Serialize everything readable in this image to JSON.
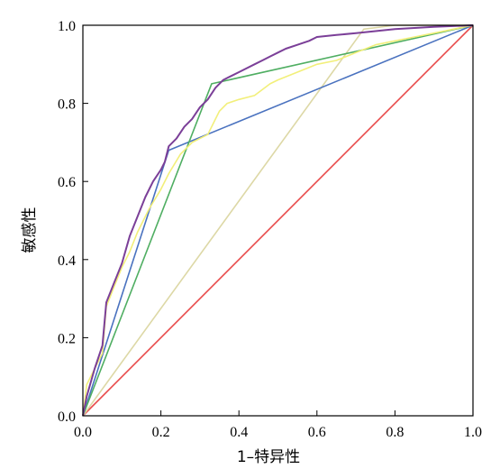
{
  "chart_data": {
    "type": "line",
    "title": "",
    "xlabel": "1–特异性",
    "ylabel": "敏感性",
    "xlim": [
      0,
      1
    ],
    "ylim": [
      0,
      1
    ],
    "x_ticks": [
      "0.0",
      "0.2",
      "0.4",
      "0.6",
      "0.8",
      "1.0"
    ],
    "y_ticks": [
      "0.0",
      "0.2",
      "0.4",
      "0.6",
      "0.8",
      "1.0"
    ],
    "grid": false,
    "legend": "none",
    "series": [
      {
        "color": "#e84a4a",
        "x": [
          0,
          1
        ],
        "y": [
          0,
          1
        ]
      },
      {
        "color": "#ddd8a6",
        "x": [
          0,
          0.72,
          0.8,
          1
        ],
        "y": [
          0,
          0.99,
          1,
          1
        ]
      },
      {
        "color": "#4a72bf",
        "x": [
          0,
          0.22,
          1
        ],
        "y": [
          0,
          0.68,
          1
        ]
      },
      {
        "color": "#4fae62",
        "x": [
          0,
          0.33,
          1
        ],
        "y": [
          0,
          0.85,
          1
        ]
      },
      {
        "color": "#f2ef7a",
        "x": [
          0,
          0.01,
          0.03,
          0.05,
          0.06,
          0.08,
          0.1,
          0.12,
          0.14,
          0.17,
          0.2,
          0.22,
          0.25,
          0.28,
          0.32,
          0.35,
          0.37,
          0.4,
          0.44,
          0.48,
          0.5,
          0.55,
          0.6,
          0.65,
          0.7,
          0.75,
          0.8,
          0.85,
          0.9,
          0.95,
          1
        ],
        "y": [
          0,
          0.08,
          0.12,
          0.16,
          0.28,
          0.33,
          0.38,
          0.42,
          0.47,
          0.53,
          0.58,
          0.62,
          0.67,
          0.7,
          0.72,
          0.78,
          0.8,
          0.81,
          0.82,
          0.85,
          0.86,
          0.88,
          0.9,
          0.91,
          0.93,
          0.95,
          0.96,
          0.97,
          0.98,
          0.99,
          1
        ]
      },
      {
        "color": "#7b3f98",
        "x": [
          0,
          0.01,
          0.03,
          0.05,
          0.06,
          0.08,
          0.1,
          0.12,
          0.14,
          0.16,
          0.18,
          0.2,
          0.21,
          0.22,
          0.24,
          0.26,
          0.28,
          0.3,
          0.32,
          0.34,
          0.36,
          0.38,
          0.4,
          0.42,
          0.44,
          0.46,
          0.48,
          0.5,
          0.52,
          0.55,
          0.58,
          0.6,
          0.65,
          0.7,
          0.75,
          0.8,
          0.85,
          0.9,
          0.95,
          1
        ],
        "y": [
          0,
          0.05,
          0.12,
          0.18,
          0.29,
          0.34,
          0.39,
          0.46,
          0.51,
          0.56,
          0.6,
          0.63,
          0.65,
          0.69,
          0.71,
          0.74,
          0.76,
          0.79,
          0.81,
          0.84,
          0.86,
          0.87,
          0.88,
          0.89,
          0.9,
          0.91,
          0.92,
          0.93,
          0.94,
          0.95,
          0.96,
          0.97,
          0.975,
          0.98,
          0.985,
          0.99,
          0.993,
          0.996,
          0.998,
          1
        ]
      }
    ]
  }
}
